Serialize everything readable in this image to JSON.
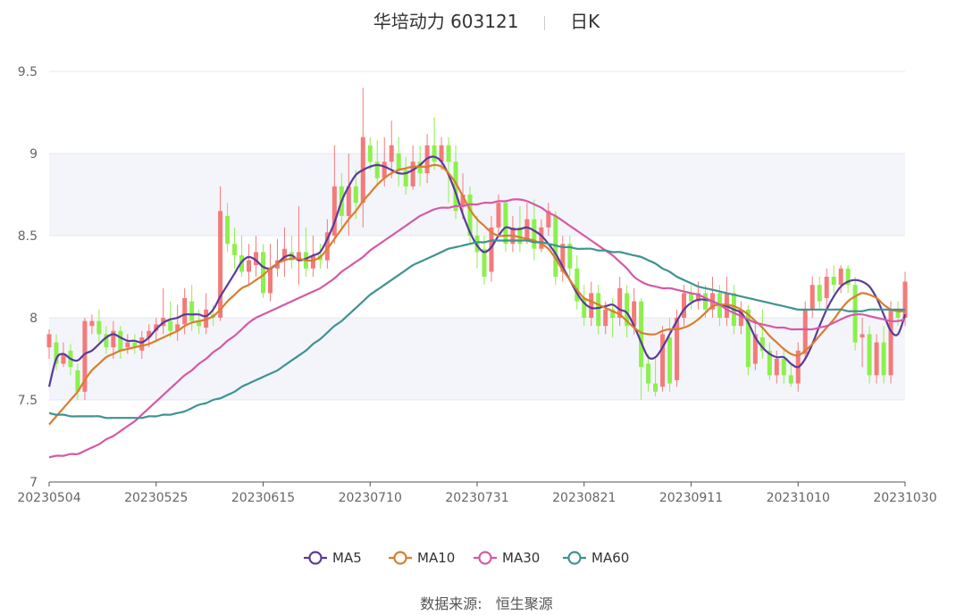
{
  "header": {
    "title": "华培动力 603121",
    "period": "日K"
  },
  "footer": {
    "source_label": "数据来源:",
    "source_name": "恒生聚源"
  },
  "colors": {
    "up": "#f47a7a",
    "down": "#8cf04d",
    "band": "#f4f5fa",
    "axis": "#cccccc"
  },
  "chart_data": {
    "type": "candlestick",
    "ylim": [
      7,
      9.5
    ],
    "y_ticks": [
      "7",
      "7.5",
      "8",
      "8.5",
      "9",
      "9.5"
    ],
    "x_ticks": [
      "20230504",
      "20230525",
      "20230615",
      "20230710",
      "20230731",
      "20230821",
      "20230911",
      "20231010",
      "20231030"
    ],
    "x_tick_index": [
      0,
      15,
      30,
      45,
      60,
      75,
      90,
      105,
      120
    ],
    "n_points": 121,
    "legend": [
      "MA5",
      "MA10",
      "MA30",
      "MA60"
    ],
    "candles": [
      [
        7.82,
        7.9,
        7.75,
        7.93
      ],
      [
        7.85,
        7.72,
        7.68,
        7.9
      ],
      [
        7.72,
        7.78,
        7.7,
        7.85
      ],
      [
        7.8,
        7.7,
        7.65,
        7.84
      ],
      [
        7.68,
        7.55,
        7.5,
        7.72
      ],
      [
        7.55,
        7.98,
        7.5,
        8.0
      ],
      [
        7.95,
        7.98,
        7.9,
        8.02
      ],
      [
        7.98,
        7.9,
        7.85,
        8.05
      ],
      [
        7.9,
        7.82,
        7.78,
        7.95
      ],
      [
        7.82,
        7.92,
        7.75,
        7.98
      ],
      [
        7.92,
        7.8,
        7.75,
        7.95
      ],
      [
        7.82,
        7.85,
        7.78,
        7.9
      ],
      [
        7.85,
        7.82,
        7.78,
        7.9
      ],
      [
        7.8,
        7.88,
        7.75,
        7.92
      ],
      [
        7.88,
        7.92,
        7.82,
        7.96
      ],
      [
        7.92,
        7.96,
        7.85,
        8.0
      ],
      [
        7.95,
        8.0,
        7.9,
        8.18
      ],
      [
        7.98,
        7.92,
        7.88,
        8.1
      ],
      [
        7.92,
        7.96,
        7.86,
        8.08
      ],
      [
        7.96,
        8.12,
        7.9,
        8.18
      ],
      [
        8.1,
        7.98,
        7.92,
        8.2
      ],
      [
        7.98,
        7.95,
        7.9,
        8.05
      ],
      [
        7.94,
        8.05,
        7.9,
        8.15
      ],
      [
        8.02,
        8.0,
        7.95,
        8.08
      ],
      [
        8.0,
        8.65,
        7.98,
        8.8
      ],
      [
        8.62,
        8.45,
        8.4,
        8.7
      ],
      [
        8.45,
        8.38,
        8.3,
        8.55
      ],
      [
        8.38,
        8.28,
        8.25,
        8.5
      ],
      [
        8.28,
        8.35,
        8.2,
        8.45
      ],
      [
        8.32,
        8.4,
        8.25,
        8.5
      ],
      [
        8.4,
        8.15,
        8.12,
        8.45
      ],
      [
        8.15,
        8.3,
        8.1,
        8.45
      ],
      [
        8.3,
        8.35,
        8.25,
        8.48
      ],
      [
        8.35,
        8.42,
        8.25,
        8.55
      ],
      [
        8.4,
        8.35,
        8.3,
        8.5
      ],
      [
        8.35,
        8.4,
        8.2,
        8.68
      ],
      [
        8.4,
        8.3,
        8.25,
        8.55
      ],
      [
        8.3,
        8.38,
        8.25,
        8.5
      ],
      [
        8.38,
        8.35,
        8.3,
        8.45
      ],
      [
        8.35,
        8.52,
        8.3,
        8.6
      ],
      [
        8.5,
        8.8,
        8.45,
        9.05
      ],
      [
        8.8,
        8.62,
        8.55,
        8.88
      ],
      [
        8.62,
        8.8,
        8.5,
        9.0
      ],
      [
        8.8,
        8.7,
        8.6,
        8.9
      ],
      [
        8.7,
        9.1,
        8.55,
        9.4
      ],
      [
        9.05,
        8.95,
        8.9,
        9.1
      ],
      [
        8.95,
        8.85,
        8.8,
        9.08
      ],
      [
        8.85,
        8.95,
        8.8,
        9.1
      ],
      [
        8.95,
        9.05,
        8.85,
        9.2
      ],
      [
        9.0,
        8.9,
        8.8,
        9.1
      ],
      [
        8.9,
        8.8,
        8.75,
        8.98
      ],
      [
        8.8,
        8.95,
        8.78,
        9.05
      ],
      [
        8.95,
        8.88,
        8.8,
        9.05
      ],
      [
        8.88,
        9.05,
        8.82,
        9.12
      ],
      [
        9.05,
        8.95,
        8.9,
        9.22
      ],
      [
        8.95,
        9.05,
        8.9,
        9.1
      ],
      [
        9.05,
        8.95,
        8.7,
        9.1
      ],
      [
        8.95,
        8.65,
        8.6,
        9.05
      ],
      [
        8.68,
        8.75,
        8.6,
        8.88
      ],
      [
        8.75,
        8.5,
        8.45,
        8.8
      ],
      [
        8.5,
        8.4,
        8.3,
        8.62
      ],
      [
        8.42,
        8.25,
        8.2,
        8.5
      ],
      [
        8.28,
        8.55,
        8.22,
        8.62
      ],
      [
        8.55,
        8.7,
        8.5,
        8.75
      ],
      [
        8.7,
        8.45,
        8.4,
        8.72
      ],
      [
        8.45,
        8.55,
        8.4,
        8.62
      ],
      [
        8.55,
        8.45,
        8.4,
        8.68
      ],
      [
        8.48,
        8.6,
        8.45,
        8.7
      ],
      [
        8.6,
        8.42,
        8.35,
        8.72
      ],
      [
        8.42,
        8.55,
        8.4,
        8.6
      ],
      [
        8.55,
        8.65,
        8.5,
        8.7
      ],
      [
        8.62,
        8.25,
        8.2,
        8.65
      ],
      [
        8.28,
        8.45,
        8.22,
        8.5
      ],
      [
        8.45,
        8.3,
        8.25,
        8.5
      ],
      [
        8.3,
        8.1,
        8.05,
        8.38
      ],
      [
        8.12,
        8.0,
        7.95,
        8.2
      ],
      [
        8.0,
        8.15,
        7.95,
        8.22
      ],
      [
        8.15,
        7.95,
        7.9,
        8.2
      ],
      [
        7.95,
        8.05,
        7.9,
        8.1
      ],
      [
        8.05,
        8.0,
        7.88,
        8.12
      ],
      [
        8.0,
        8.18,
        7.95,
        8.25
      ],
      [
        8.15,
        7.95,
        7.88,
        8.2
      ],
      [
        7.95,
        8.1,
        7.9,
        8.18
      ],
      [
        8.1,
        7.7,
        7.5,
        8.12
      ],
      [
        7.72,
        7.6,
        7.55,
        7.78
      ],
      [
        7.6,
        7.55,
        7.52,
        7.75
      ],
      [
        7.58,
        7.9,
        7.55,
        7.95
      ],
      [
        7.88,
        7.6,
        7.55,
        8.0
      ],
      [
        7.62,
        8.0,
        7.58,
        8.05
      ],
      [
        8.0,
        8.15,
        7.95,
        8.2
      ],
      [
        8.15,
        8.1,
        8.05,
        8.2
      ],
      [
        8.1,
        8.15,
        8.05,
        8.22
      ],
      [
        8.15,
        8.05,
        8.0,
        8.2
      ],
      [
        8.05,
        8.15,
        8.0,
        8.25
      ],
      [
        8.15,
        8.0,
        7.95,
        8.2
      ],
      [
        8.0,
        8.15,
        7.95,
        8.25
      ],
      [
        8.15,
        7.95,
        7.9,
        8.2
      ],
      [
        7.95,
        8.05,
        7.9,
        8.1
      ],
      [
        8.05,
        7.7,
        7.65,
        8.08
      ],
      [
        7.72,
        7.9,
        7.68,
        7.98
      ],
      [
        7.88,
        7.8,
        7.75,
        8.05
      ],
      [
        7.8,
        7.65,
        7.62,
        7.85
      ],
      [
        7.65,
        7.75,
        7.6,
        7.8
      ],
      [
        7.75,
        7.65,
        7.6,
        7.82
      ],
      [
        7.65,
        7.6,
        7.58,
        7.72
      ],
      [
        7.6,
        7.8,
        7.55,
        7.85
      ],
      [
        7.78,
        8.05,
        7.75,
        8.1
      ],
      [
        8.05,
        8.2,
        8.0,
        8.25
      ],
      [
        8.2,
        8.1,
        8.05,
        8.25
      ],
      [
        8.12,
        8.25,
        8.05,
        8.3
      ],
      [
        8.25,
        8.2,
        8.15,
        8.32
      ],
      [
        8.2,
        8.3,
        8.15,
        8.32
      ],
      [
        8.3,
        8.2,
        8.15,
        8.32
      ],
      [
        8.2,
        7.85,
        7.8,
        8.25
      ],
      [
        7.88,
        7.9,
        7.7,
        8.0
      ],
      [
        7.9,
        7.65,
        7.6,
        7.95
      ],
      [
        7.65,
        7.85,
        7.6,
        7.9
      ],
      [
        7.85,
        7.65,
        7.6,
        7.95
      ],
      [
        7.65,
        8.05,
        7.6,
        8.1
      ],
      [
        8.05,
        8.0,
        7.95,
        8.1
      ],
      [
        8.0,
        8.22,
        7.95,
        8.28
      ]
    ],
    "series": [
      {
        "name": "MA5",
        "color": "#5b3a9a",
        "values": [
          7.58,
          7.75,
          7.78,
          7.75,
          7.74,
          7.78,
          7.8,
          7.84,
          7.88,
          7.9,
          7.88,
          7.86,
          7.86,
          7.85,
          7.88,
          7.93,
          7.97,
          7.99,
          8.0,
          8.02,
          8.02,
          8.02,
          8.01,
          8.05,
          8.13,
          8.2,
          8.27,
          8.34,
          8.37,
          8.35,
          8.31,
          8.3,
          8.33,
          8.37,
          8.38,
          8.35,
          8.36,
          8.38,
          8.4,
          8.48,
          8.58,
          8.71,
          8.8,
          8.87,
          8.9,
          8.92,
          8.93,
          8.92,
          8.9,
          8.88,
          8.88,
          8.9,
          8.93,
          8.97,
          8.98,
          8.95,
          8.87,
          8.76,
          8.63,
          8.52,
          8.44,
          8.4,
          8.43,
          8.5,
          8.55,
          8.54,
          8.54,
          8.55,
          8.53,
          8.5,
          8.45,
          8.39,
          8.31,
          8.23,
          8.15,
          8.09,
          8.06,
          8.06,
          8.07,
          8.08,
          8.05,
          8.03,
          7.95,
          7.85,
          7.76,
          7.76,
          7.82,
          7.9,
          7.98,
          8.05,
          8.09,
          8.11,
          8.11,
          8.1,
          8.08,
          8.07,
          8.05,
          8.03,
          7.97,
          7.88,
          7.82,
          7.78,
          7.76,
          7.76,
          7.72,
          7.7,
          7.75,
          7.84,
          7.95,
          8.05,
          8.13,
          8.19,
          8.22,
          8.23,
          8.22,
          8.19,
          8.12,
          8.02,
          7.92,
          7.9,
          8.02
        ]
      },
      {
        "name": "MA10",
        "color": "#d97e2f",
        "values": [
          7.35,
          7.4,
          7.45,
          7.5,
          7.55,
          7.62,
          7.68,
          7.72,
          7.76,
          7.78,
          7.8,
          7.81,
          7.82,
          7.83,
          7.84,
          7.86,
          7.88,
          7.9,
          7.92,
          7.95,
          7.97,
          7.98,
          7.99,
          8.01,
          8.05,
          8.1,
          8.14,
          8.18,
          8.2,
          8.23,
          8.26,
          8.3,
          8.33,
          8.35,
          8.36,
          8.36,
          8.35,
          8.35,
          8.37,
          8.42,
          8.48,
          8.54,
          8.6,
          8.65,
          8.71,
          8.76,
          8.81,
          8.85,
          8.88,
          8.9,
          8.91,
          8.92,
          8.92,
          8.92,
          8.93,
          8.92,
          8.88,
          8.82,
          8.74,
          8.66,
          8.6,
          8.56,
          8.52,
          8.5,
          8.5,
          8.5,
          8.49,
          8.48,
          8.47,
          8.45,
          8.42,
          8.36,
          8.29,
          8.23,
          8.17,
          8.12,
          8.1,
          8.08,
          8.06,
          8.04,
          8.02,
          7.98,
          7.94,
          7.91,
          7.9,
          7.9,
          7.92,
          7.93,
          7.93,
          7.94,
          7.96,
          7.99,
          8.03,
          8.07,
          8.08,
          8.08,
          8.07,
          8.05,
          8.02,
          7.98,
          7.94,
          7.89,
          7.85,
          7.81,
          7.78,
          7.77,
          7.8,
          7.84,
          7.89,
          7.94,
          7.99,
          8.05,
          8.1,
          8.13,
          8.15,
          8.14,
          8.12,
          8.08,
          8.05,
          8.04,
          8.04
        ]
      },
      {
        "name": "MA30",
        "color": "#d659a6",
        "values": [
          7.15,
          7.16,
          7.16,
          7.17,
          7.17,
          7.19,
          7.21,
          7.23,
          7.26,
          7.28,
          7.31,
          7.34,
          7.37,
          7.41,
          7.45,
          7.49,
          7.53,
          7.57,
          7.61,
          7.65,
          7.68,
          7.72,
          7.75,
          7.79,
          7.82,
          7.86,
          7.89,
          7.93,
          7.97,
          8.0,
          8.02,
          8.04,
          8.06,
          8.08,
          8.1,
          8.12,
          8.14,
          8.16,
          8.18,
          8.21,
          8.24,
          8.28,
          8.31,
          8.34,
          8.37,
          8.41,
          8.44,
          8.47,
          8.5,
          8.53,
          8.56,
          8.59,
          8.62,
          8.64,
          8.66,
          8.67,
          8.67,
          8.68,
          8.68,
          8.69,
          8.69,
          8.7,
          8.7,
          8.71,
          8.71,
          8.72,
          8.72,
          8.71,
          8.69,
          8.67,
          8.64,
          8.62,
          8.59,
          8.56,
          8.53,
          8.5,
          8.47,
          8.44,
          8.41,
          8.38,
          8.34,
          8.3,
          8.25,
          8.22,
          8.2,
          8.19,
          8.18,
          8.18,
          8.17,
          8.16,
          8.15,
          8.14,
          8.12,
          8.1,
          8.08,
          8.05,
          8.03,
          8.01,
          7.99,
          7.97,
          7.96,
          7.95,
          7.94,
          7.94,
          7.93,
          7.93,
          7.93,
          7.93,
          7.94,
          7.95,
          7.97,
          7.99,
          8.01,
          8.02,
          8.02,
          8.01,
          8.0,
          7.99,
          7.98,
          7.98,
          7.99
        ]
      },
      {
        "name": "MA60",
        "color": "#3f9390",
        "values": [
          7.42,
          7.41,
          7.41,
          7.4,
          7.4,
          7.4,
          7.4,
          7.4,
          7.39,
          7.39,
          7.39,
          7.39,
          7.39,
          7.39,
          7.4,
          7.4,
          7.41,
          7.41,
          7.42,
          7.43,
          7.45,
          7.47,
          7.48,
          7.5,
          7.51,
          7.53,
          7.55,
          7.58,
          7.6,
          7.62,
          7.64,
          7.66,
          7.68,
          7.71,
          7.74,
          7.77,
          7.8,
          7.84,
          7.87,
          7.91,
          7.95,
          7.98,
          8.02,
          8.06,
          8.1,
          8.14,
          8.17,
          8.2,
          8.23,
          8.26,
          8.29,
          8.32,
          8.34,
          8.36,
          8.38,
          8.4,
          8.42,
          8.43,
          8.44,
          8.45,
          8.46,
          8.46,
          8.47,
          8.47,
          8.47,
          8.47,
          8.47,
          8.47,
          8.46,
          8.46,
          8.45,
          8.44,
          8.43,
          8.43,
          8.42,
          8.42,
          8.42,
          8.41,
          8.41,
          8.4,
          8.4,
          8.39,
          8.38,
          8.37,
          8.35,
          8.33,
          8.3,
          8.28,
          8.25,
          8.23,
          8.21,
          8.19,
          8.18,
          8.17,
          8.16,
          8.15,
          8.14,
          8.13,
          8.12,
          8.11,
          8.1,
          8.09,
          8.08,
          8.07,
          8.06,
          8.05,
          8.05,
          8.05,
          8.05,
          8.05,
          8.05,
          8.05,
          8.04,
          8.04,
          8.04,
          8.05,
          8.05,
          8.05,
          8.05,
          8.05,
          8.05
        ]
      }
    ]
  }
}
